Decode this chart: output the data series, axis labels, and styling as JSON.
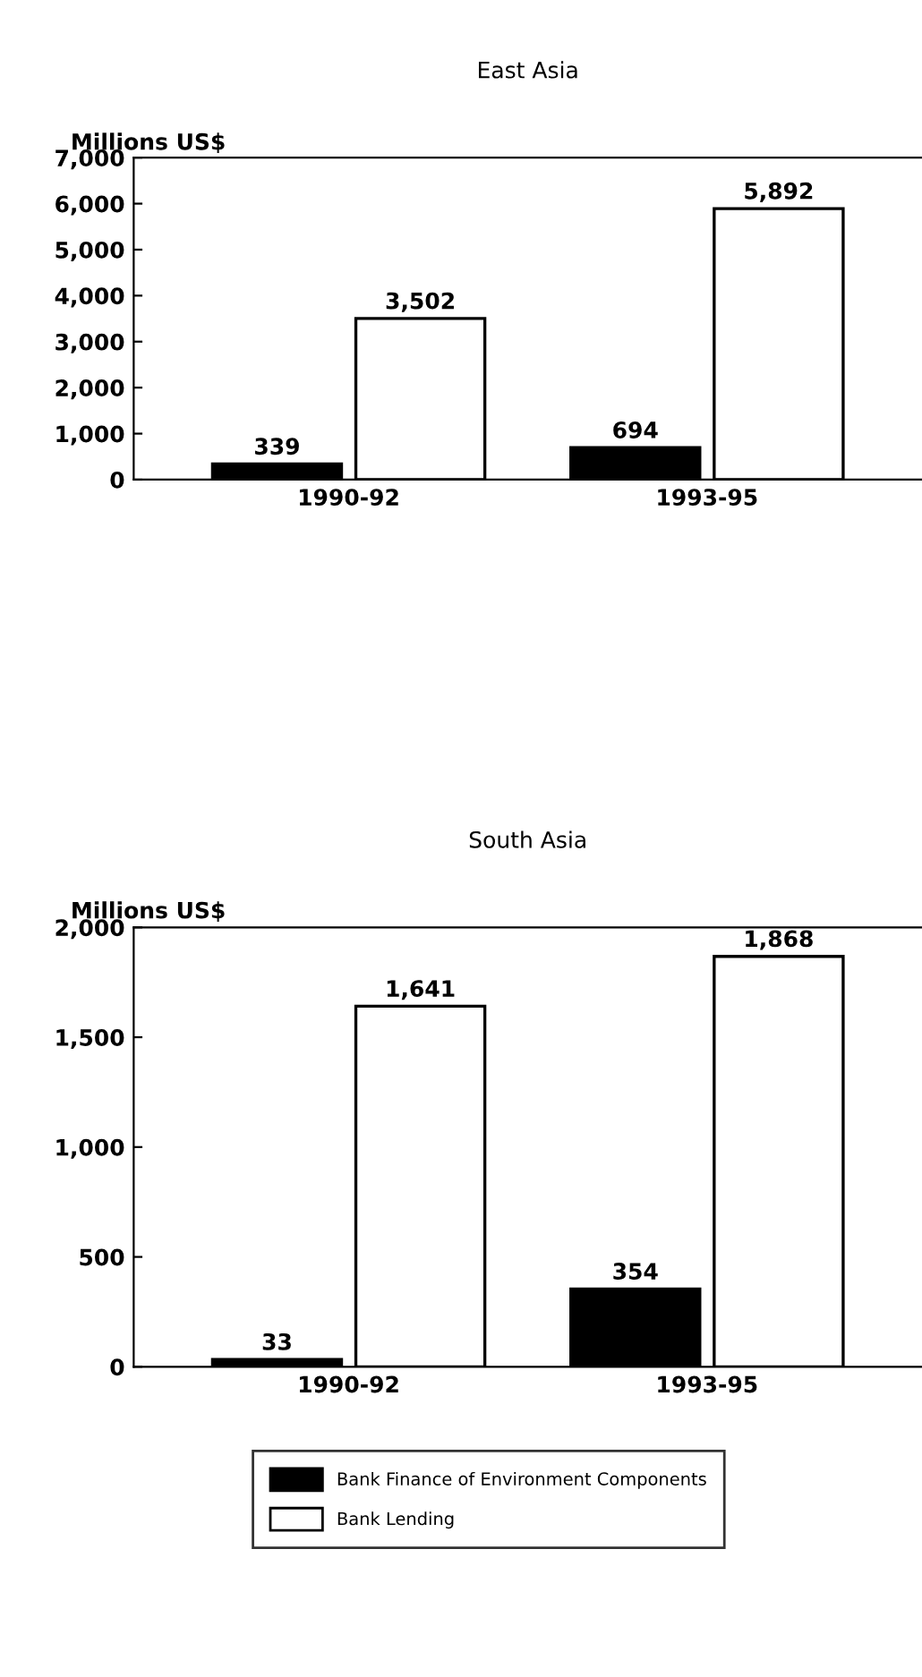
{
  "chart_data": [
    {
      "type": "bar",
      "title": "East Asia",
      "ylabel": "Millions US$",
      "categories": [
        "1990-92",
        "1993-95"
      ],
      "series": [
        {
          "name": "Bank Finance of Environment Components",
          "color": "#000000",
          "values": [
            339,
            694
          ]
        },
        {
          "name": "Bank Lending",
          "color": "#ffffff",
          "values": [
            3502,
            5892
          ]
        }
      ],
      "ylim": [
        0,
        7000
      ],
      "yticks": [
        {
          "value": 0,
          "label": "0"
        },
        {
          "value": 1000,
          "label": "1,000"
        },
        {
          "value": 2000,
          "label": "2,000"
        },
        {
          "value": 3000,
          "label": "3,000"
        },
        {
          "value": 4000,
          "label": "4,000"
        },
        {
          "value": 5000,
          "label": "5,000"
        },
        {
          "value": 6000,
          "label": "6,000"
        },
        {
          "value": 7000,
          "label": "7,000"
        }
      ],
      "value_labels": [
        [
          "339",
          "694"
        ],
        [
          "3,502",
          "5,892"
        ]
      ],
      "legend": "bottom",
      "grid": false
    },
    {
      "type": "bar",
      "title": "South Asia",
      "ylabel": "Millions US$",
      "categories": [
        "1990-92",
        "1993-95"
      ],
      "series": [
        {
          "color": "#000000",
          "values": [
            33,
            354
          ]
        },
        {
          "color": "#ffffff",
          "values": [
            1641,
            1868
          ]
        }
      ],
      "ylim": [
        0,
        2000
      ],
      "yticks": [
        {
          "value": 0,
          "label": "0"
        },
        {
          "value": 500,
          "label": "500"
        },
        {
          "value": 1000,
          "label": "1,000"
        },
        {
          "value": 1500,
          "label": "1,500"
        },
        {
          "value": 2000,
          "label": "2,000"
        }
      ],
      "value_labels": [
        [
          "33",
          "354"
        ],
        [
          "1,641",
          "1,868"
        ]
      ],
      "grid": false
    }
  ]
}
